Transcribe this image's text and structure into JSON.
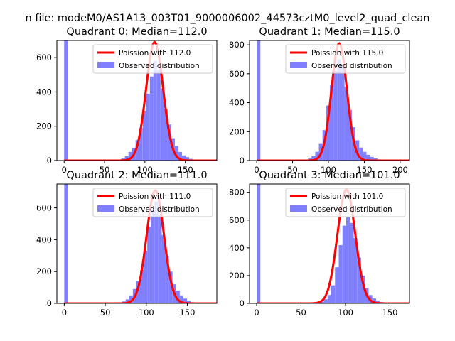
{
  "figure": {
    "suptitle": "n file: modeM0/AS1A13_003T01_9000006002_44573cztM0_level2_quad_clean"
  },
  "colors": {
    "poisson": "#ff0000",
    "observed": "#8080ff"
  },
  "chart_data": [
    {
      "type": "bar",
      "title": "Quadrant 0: Median=112.0",
      "xlim": [
        -9,
        189
      ],
      "ylim": [
        0,
        700
      ],
      "xticks": [
        0,
        50,
        100,
        150
      ],
      "yticks": [
        0,
        200,
        400,
        600
      ],
      "legend": {
        "location": "top-right",
        "entries": [
          "Poission with 112.0",
          "Observed distribution"
        ]
      },
      "series": [
        {
          "name": "Poission with 112.0",
          "kind": "line",
          "mu": 112.0,
          "peak": 690
        },
        {
          "name": "Observed distribution",
          "kind": "hist",
          "bin_width": 4.42,
          "bins": [
            [
              0,
              800
            ],
            [
              66.3,
              5
            ],
            [
              70.7,
              12
            ],
            [
              75.1,
              25
            ],
            [
              79.6,
              50
            ],
            [
              84.0,
              75
            ],
            [
              88.4,
              120
            ],
            [
              92.8,
              190
            ],
            [
              97.3,
              290
            ],
            [
              101.7,
              390
            ],
            [
              106.1,
              490
            ],
            [
              110.5,
              580
            ],
            [
              114.9,
              530
            ],
            [
              119.4,
              420
            ],
            [
              123.8,
              300
            ],
            [
              128.2,
              210
            ],
            [
              132.6,
              130
            ],
            [
              137.0,
              85
            ],
            [
              141.4,
              50
            ],
            [
              145.9,
              30
            ],
            [
              150.3,
              20
            ],
            [
              154.7,
              10
            ],
            [
              159.1,
              6
            ],
            [
              163.5,
              3
            ]
          ]
        }
      ]
    },
    {
      "type": "bar",
      "title": "Quadrant 1: Median=115.0",
      "xlim": [
        -10,
        213
      ],
      "ylim": [
        0,
        830
      ],
      "xticks": [
        0,
        50,
        100,
        150,
        200
      ],
      "yticks": [
        0,
        200,
        400,
        600,
        800
      ],
      "legend": {
        "location": "top-right",
        "entries": [
          "Poission with 115.0",
          "Observed distribution"
        ]
      },
      "series": [
        {
          "name": "Poission with 115.0",
          "kind": "line",
          "mu": 115.0,
          "peak": 810
        },
        {
          "name": "Observed distribution",
          "kind": "hist",
          "bin_width": 5.1,
          "bins": [
            [
              0,
              900
            ],
            [
              61.2,
              4
            ],
            [
              66.3,
              7
            ],
            [
              71.4,
              14
            ],
            [
              76.5,
              30
            ],
            [
              81.6,
              60
            ],
            [
              86.7,
              120
            ],
            [
              91.8,
              210
            ],
            [
              96.9,
              380
            ],
            [
              102.0,
              520
            ],
            [
              107.1,
              620
            ],
            [
              112.2,
              700
            ],
            [
              117.3,
              650
            ],
            [
              122.4,
              510
            ],
            [
              127.5,
              350
            ],
            [
              132.6,
              230
            ],
            [
              137.7,
              140
            ],
            [
              142.8,
              90
            ],
            [
              147.9,
              60
            ],
            [
              153.0,
              40
            ],
            [
              158.1,
              25
            ],
            [
              163.2,
              15
            ],
            [
              168.3,
              8
            ],
            [
              173.4,
              4
            ],
            [
              178.5,
              2
            ]
          ]
        }
      ]
    },
    {
      "type": "bar",
      "title": "Quadrant 2: Median=111.0",
      "xlim": [
        -9,
        186
      ],
      "ylim": [
        0,
        750
      ],
      "xticks": [
        0,
        50,
        100,
        150
      ],
      "yticks": [
        0,
        200,
        400,
        600
      ],
      "legend": {
        "location": "top-right",
        "entries": [
          "Poission with 111.0",
          "Observed distribution"
        ]
      },
      "series": [
        {
          "name": "Poission with 111.0",
          "kind": "line",
          "mu": 111.0,
          "peak": 710
        },
        {
          "name": "Observed distribution",
          "kind": "hist",
          "bin_width": 4.4,
          "bins": [
            [
              0,
              800
            ],
            [
              61.6,
              3
            ],
            [
              66.0,
              6
            ],
            [
              70.4,
              12
            ],
            [
              74.8,
              25
            ],
            [
              79.2,
              50
            ],
            [
              83.6,
              90
            ],
            [
              88.0,
              140
            ],
            [
              92.4,
              210
            ],
            [
              96.8,
              330
            ],
            [
              101.2,
              480
            ],
            [
              105.6,
              590
            ],
            [
              110.0,
              640
            ],
            [
              114.4,
              560
            ],
            [
              118.8,
              430
            ],
            [
              123.2,
              300
            ],
            [
              127.6,
              200
            ],
            [
              132.0,
              120
            ],
            [
              136.4,
              80
            ],
            [
              140.8,
              50
            ],
            [
              145.2,
              30
            ],
            [
              149.6,
              15
            ],
            [
              154.0,
              8
            ]
          ]
        }
      ]
    },
    {
      "type": "bar",
      "title": "Quadrant 3: Median=101.0",
      "xlim": [
        -8,
        172
      ],
      "ylim": [
        0,
        860
      ],
      "xticks": [
        0,
        50,
        100,
        150
      ],
      "yticks": [
        0,
        200,
        400,
        600,
        800
      ],
      "legend": {
        "location": "top-right",
        "entries": [
          "Poission with 101.0",
          "Observed distribution"
        ]
      },
      "series": [
        {
          "name": "Poission with 101.0",
          "kind": "line",
          "mu": 101.0,
          "peak": 820
        },
        {
          "name": "Observed distribution",
          "kind": "hist",
          "bin_width": 4.2,
          "bins": [
            [
              0,
              900
            ],
            [
              63.0,
              3
            ],
            [
              67.2,
              6
            ],
            [
              71.4,
              12
            ],
            [
              75.6,
              30
            ],
            [
              79.8,
              60
            ],
            [
              84.0,
              130
            ],
            [
              88.2,
              260
            ],
            [
              92.4,
              420
            ],
            [
              96.6,
              560
            ],
            [
              100.8,
              620
            ],
            [
              105.0,
              580
            ],
            [
              109.2,
              470
            ],
            [
              113.4,
              330
            ],
            [
              117.6,
              200
            ],
            [
              121.8,
              110
            ],
            [
              126.0,
              60
            ],
            [
              130.2,
              35
            ],
            [
              134.4,
              20
            ],
            [
              138.6,
              10
            ],
            [
              142.8,
              5
            ]
          ]
        }
      ]
    }
  ]
}
